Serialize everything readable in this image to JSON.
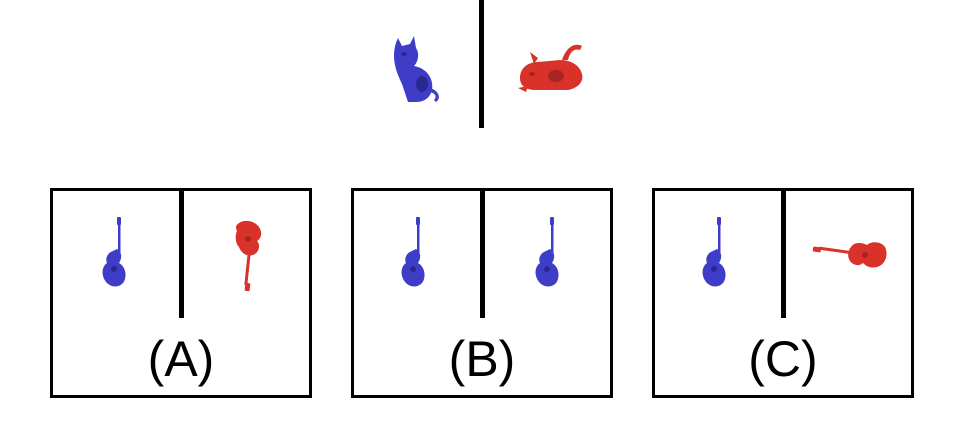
{
  "prompt": {
    "left": {
      "object": "cat",
      "color": "#3f3dc8"
    },
    "right": {
      "object": "cat",
      "color": "#d8322b"
    }
  },
  "options": [
    {
      "label": "(A)",
      "left": {
        "object": "guitar",
        "color": "#3f3dc8"
      },
      "right": {
        "object": "guitar",
        "color": "#d8322b"
      }
    },
    {
      "label": "(B)",
      "left": {
        "object": "guitar",
        "color": "#3f3dc8"
      },
      "right": {
        "object": "guitar",
        "color": "#3f3dc8"
      }
    },
    {
      "label": "(C)",
      "left": {
        "object": "guitar",
        "color": "#3f3dc8"
      },
      "right": {
        "object": "guitar",
        "color": "#d8322b"
      }
    }
  ]
}
